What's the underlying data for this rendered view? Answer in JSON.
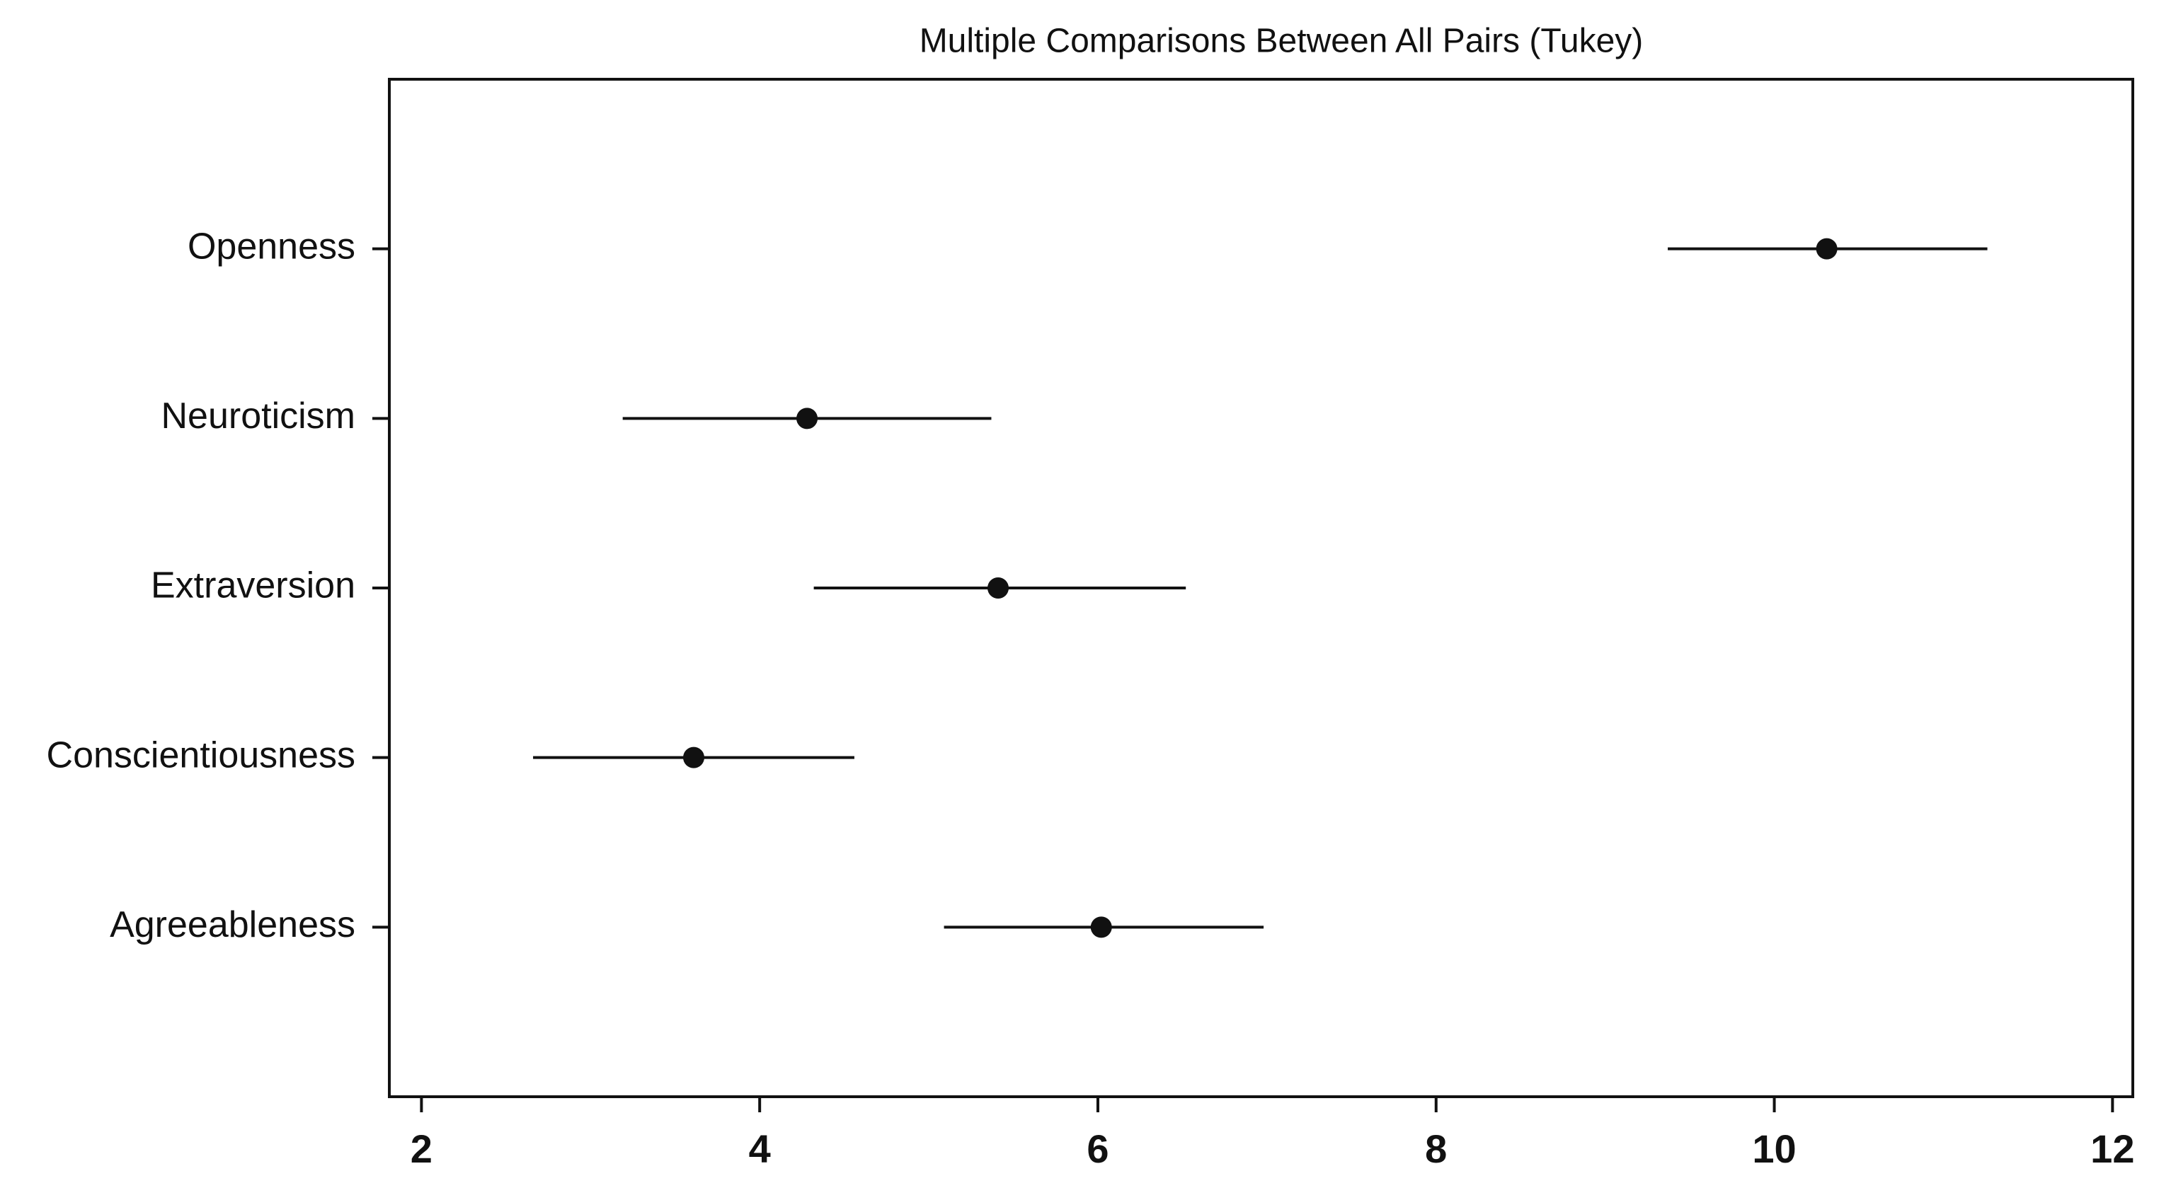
{
  "chart_data": {
    "type": "interval",
    "title": "Multiple Comparisons Between All Pairs (Tukey)",
    "categories": [
      "Openness",
      "Neuroticism",
      "Extraversion",
      "Conscientiousness",
      "Agreeableness"
    ],
    "values": [
      10.31,
      4.28,
      5.41,
      3.61,
      6.02
    ],
    "lower": [
      9.37,
      3.19,
      4.32,
      2.66,
      5.09
    ],
    "upper": [
      11.26,
      5.37,
      6.52,
      4.56,
      6.98
    ],
    "color": "#111111",
    "xlim": [
      1.81,
      12.12
    ],
    "xticks": [
      2,
      4,
      6,
      8,
      10,
      12
    ]
  }
}
